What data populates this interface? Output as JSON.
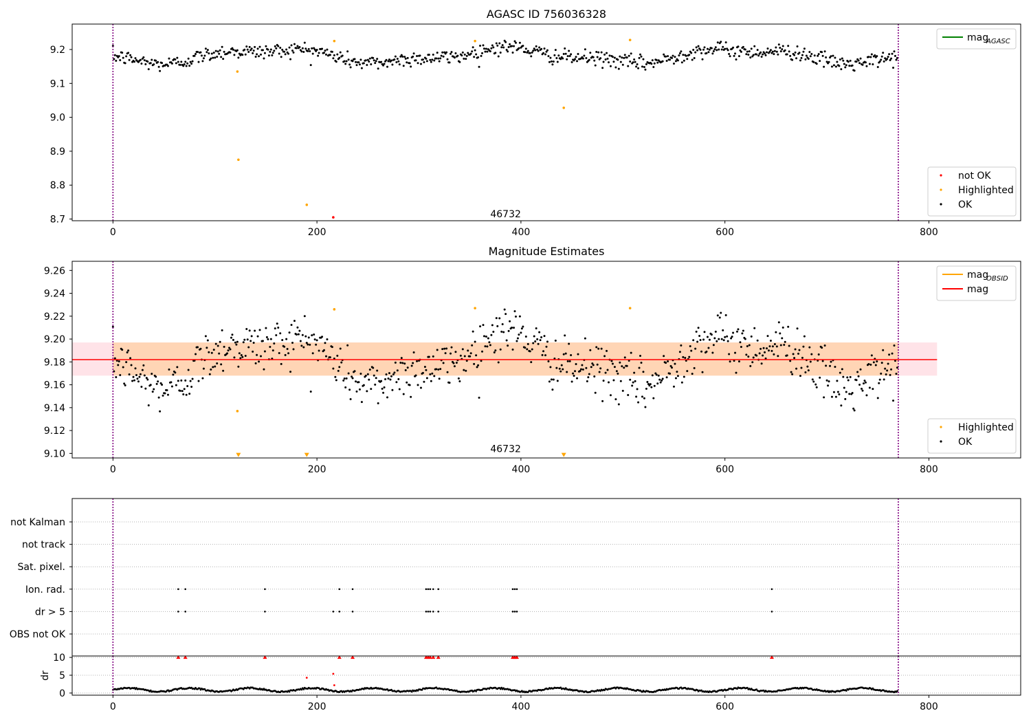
{
  "chart_data": [
    {
      "type": "scatter",
      "title": "AGASC ID 756036328",
      "xlim": [
        -40,
        890
      ],
      "ylim": [
        8.695,
        9.275
      ],
      "xticks": [
        0,
        200,
        400,
        600,
        800
      ],
      "yticks": [
        8.7,
        8.8,
        8.9,
        9.0,
        9.1,
        9.2
      ],
      "ytick_decimals": 1,
      "vlines": [
        0,
        770
      ],
      "obsid_label": {
        "text": "46732",
        "x": 385,
        "y": 8.715
      },
      "series": [
        {
          "name": "mag_AGASC",
          "type": "line",
          "color": "#008000"
        },
        {
          "name": "not OK",
          "color": "#ff0000",
          "points": [
            [
              216,
              8.705
            ]
          ]
        },
        {
          "name": "Highlighted",
          "color": "#ffa500",
          "points": [
            [
              122,
              9.135
            ],
            [
              123,
              8.875
            ],
            [
              190,
              8.742
            ],
            [
              217,
              9.225
            ],
            [
              355,
              9.225
            ],
            [
              442,
              9.028
            ],
            [
              507,
              9.228
            ]
          ]
        },
        {
          "name": "OK",
          "color": "#000000",
          "n": 770,
          "mean": 9.182,
          "noise": 0.011,
          "wave": [
            {
              "amp": 0.019,
              "period": 230,
              "phase": 3.6
            },
            {
              "amp": 0.007,
              "period": 95,
              "phase": 1.2
            }
          ]
        }
      ],
      "legend_top": {
        "entries": [
          {
            "label": "mag",
            "sub": "AGASC",
            "kind": "line",
            "color": "#008000"
          }
        ],
        "loc": "upper right"
      },
      "legend_bottom": {
        "entries": [
          {
            "label": "not OK",
            "color": "#ff0000"
          },
          {
            "label": "Highlighted",
            "color": "#ffa500"
          },
          {
            "label": "OK",
            "color": "#000000"
          }
        ],
        "loc": "lower right"
      }
    },
    {
      "type": "scatter",
      "title": "Magnitude Estimates",
      "xlim": [
        -40,
        890
      ],
      "ylim": [
        9.096,
        9.268
      ],
      "xticks": [
        0,
        200,
        400,
        600,
        800
      ],
      "yticks": [
        9.1,
        9.12,
        9.14,
        9.16,
        9.18,
        9.2,
        9.22,
        9.24,
        9.26
      ],
      "ytick_decimals": 2,
      "vlines": [
        0,
        770
      ],
      "obsid_label": {
        "text": "46732",
        "x": 385,
        "y": 9.104
      },
      "bands": [
        {
          "x": [
            -40,
            808
          ],
          "y": [
            9.168,
            9.197
          ],
          "color": "#ffc0cb",
          "opacity": 0.45
        },
        {
          "x": [
            0,
            770
          ],
          "y": [
            9.168,
            9.197
          ],
          "color": "#ffa500",
          "opacity": 0.22
        }
      ],
      "hlines": [
        {
          "name": "mag",
          "y": 9.182,
          "x": [
            -40,
            808
          ],
          "color": "#ff0000"
        }
      ],
      "series": [
        {
          "name": "Highlighted",
          "color": "#ffa500",
          "points": [
            [
              122,
              9.137
            ],
            [
              217,
              9.226
            ],
            [
              355,
              9.227
            ],
            [
              507,
              9.227
            ]
          ],
          "arrows": [
            [
              123,
              9.098
            ],
            [
              190,
              9.098
            ],
            [
              442,
              9.098
            ]
          ]
        },
        {
          "name": "OK",
          "color": "#000000",
          "n": 770,
          "mean": 9.182,
          "noise": 0.011,
          "wave": [
            {
              "amp": 0.019,
              "period": 230,
              "phase": 3.6
            },
            {
              "amp": 0.007,
              "period": 95,
              "phase": 1.2
            }
          ]
        }
      ],
      "legend_top": {
        "entries": [
          {
            "label": "mag",
            "sub": "OBSID",
            "kind": "line",
            "color": "#ffa500"
          },
          {
            "label": "mag",
            "kind": "line",
            "color": "#ff0000"
          }
        ],
        "loc": "upper right"
      },
      "legend_bottom": {
        "entries": [
          {
            "label": "Highlighted",
            "color": "#ffa500"
          },
          {
            "label": "OK",
            "color": "#000000"
          }
        ],
        "loc": "lower right"
      }
    },
    {
      "type": "scatter",
      "title": "",
      "xlim": [
        -40,
        890
      ],
      "xticks": [
        0,
        200,
        400,
        600,
        800
      ],
      "vlines": [
        0,
        770
      ],
      "flag_rows": [
        "not Kalman",
        "not track",
        "Sat. pixel.",
        "Ion. rad.",
        "dr > 5",
        "OBS not OK"
      ],
      "flag_events": {
        "Ion. rad.": [
          64,
          71,
          149,
          222,
          235,
          307,
          309,
          311,
          314,
          319,
          392,
          394,
          396,
          646
        ],
        "dr > 5": [
          64,
          71,
          149,
          216,
          222,
          235,
          307,
          309,
          311,
          314,
          319,
          392,
          394,
          396,
          646
        ]
      }
    },
    {
      "type": "scatter",
      "title": "",
      "ylabel": "dr",
      "xlim": [
        -40,
        890
      ],
      "ylim": [
        -0.6,
        10.4
      ],
      "xticks": [
        0,
        200,
        400,
        600,
        800
      ],
      "yticks": [
        0,
        5,
        10
      ],
      "vlines": [
        0,
        770
      ],
      "clipped_markers": [
        64,
        71,
        149,
        222,
        235,
        307,
        309,
        311,
        314,
        319,
        392,
        394,
        396,
        646
      ],
      "series": [
        {
          "name": "dr",
          "color": "#000000",
          "n": 770,
          "base": 0.9,
          "amp": 0.5,
          "period": 60
        },
        {
          "name": "dr-high",
          "color": "#ff0000",
          "points": [
            [
              216,
              5.4
            ],
            [
              190,
              4.3
            ],
            [
              217,
              2.2
            ]
          ]
        }
      ]
    }
  ]
}
